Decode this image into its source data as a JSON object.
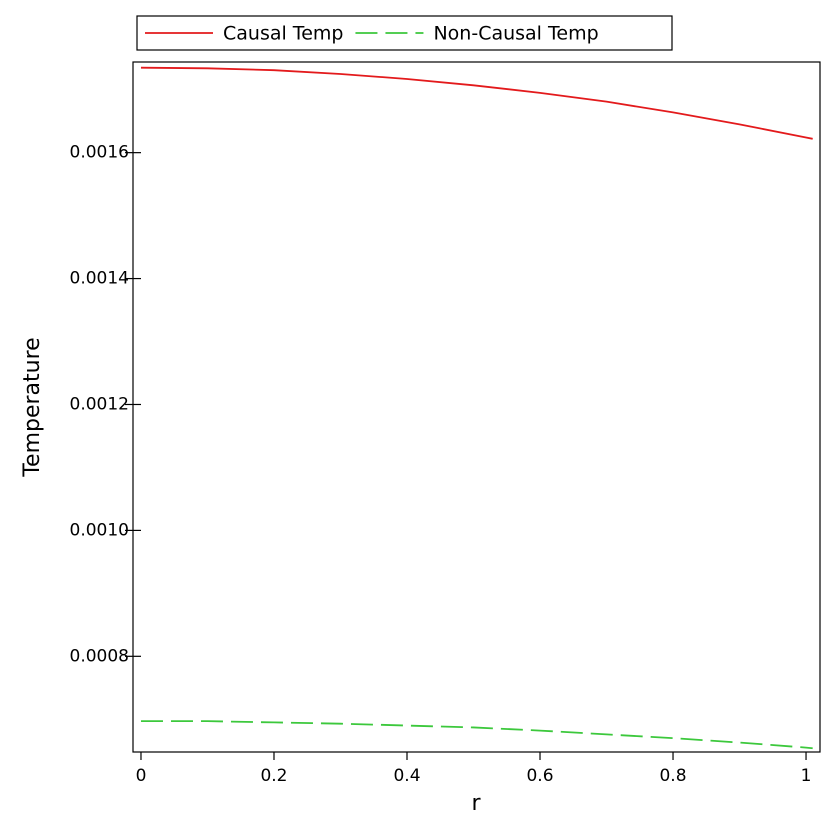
{
  "chart_data": {
    "type": "line",
    "xlabel": "r",
    "ylabel": "Temperature",
    "x": [
      0,
      0.1,
      0.2,
      0.3,
      0.4,
      0.5,
      0.6,
      0.7,
      0.8,
      0.9,
      1.0,
      1.01
    ],
    "series": [
      {
        "name": "Causal Temp",
        "color": "#e31a1c",
        "dash": "solid",
        "values": [
          0.001735,
          0.001734,
          0.001731,
          0.001725,
          0.001717,
          0.001707,
          0.001695,
          0.001681,
          0.001664,
          0.001645,
          0.001624,
          0.001622
        ]
      },
      {
        "name": "Non-Causal Temp",
        "color": "#3cc83c",
        "dash": "dashed",
        "values": [
          0.000697,
          0.000697,
          0.000695,
          0.000693,
          0.00069,
          0.000687,
          0.000682,
          0.000676,
          0.00067,
          0.000663,
          0.000655,
          0.000654
        ]
      }
    ],
    "xlim": [
      -0.012,
      1.021
    ],
    "ylim": [
      0.000648,
      0.001744
    ],
    "xticks": [
      0,
      0.2,
      0.4,
      0.6,
      0.8,
      1
    ],
    "yticks": [
      0.0008,
      {
        "value": 0.001,
        "label": "0.0010"
      },
      0.0012,
      0.0014,
      0.0016
    ],
    "legend": "top"
  }
}
